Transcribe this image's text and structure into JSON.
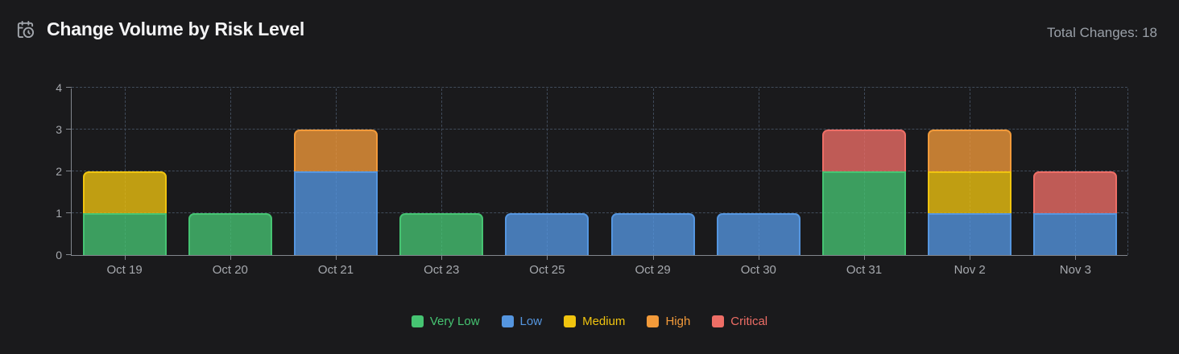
{
  "header": {
    "icon": "calendar-clock-icon",
    "title": "Change Volume by Risk Level",
    "total_label": "Total Changes: 18"
  },
  "colors": {
    "background": "#1a1a1c",
    "title_text": "#f4f4f5",
    "muted_text": "#a6a9ae",
    "axis": "#82868d",
    "gridline": "#404b5a"
  },
  "chart_data": {
    "type": "bar",
    "stacked": true,
    "title": "Change Volume by Risk Level",
    "total_changes": 18,
    "categories": [
      "Oct 19",
      "Oct 20",
      "Oct 21",
      "Oct 23",
      "Oct 25",
      "Oct 29",
      "Oct 30",
      "Oct 31",
      "Nov 2",
      "Nov 3"
    ],
    "series": [
      {
        "name": "Very Low",
        "color": "#46c472",
        "values": [
          1,
          1,
          0,
          1,
          0,
          0,
          0,
          2,
          0,
          0
        ]
      },
      {
        "name": "Low",
        "color": "#5596e0",
        "values": [
          0,
          0,
          2,
          0,
          1,
          1,
          1,
          0,
          1,
          1
        ]
      },
      {
        "name": "Medium",
        "color": "#f0c40f",
        "values": [
          1,
          0,
          0,
          0,
          0,
          0,
          0,
          0,
          1,
          0
        ]
      },
      {
        "name": "High",
        "color": "#f29a3a",
        "values": [
          0,
          0,
          1,
          0,
          0,
          0,
          0,
          0,
          1,
          0
        ]
      },
      {
        "name": "Critical",
        "color": "#ee6e66",
        "values": [
          0,
          0,
          0,
          0,
          0,
          0,
          0,
          1,
          0,
          1
        ]
      }
    ],
    "xlabel": "",
    "ylabel": "",
    "ylim": [
      0,
      4
    ],
    "yticks": [
      0,
      1,
      2,
      3,
      4
    ],
    "grid": true,
    "legend_position": "bottom"
  }
}
